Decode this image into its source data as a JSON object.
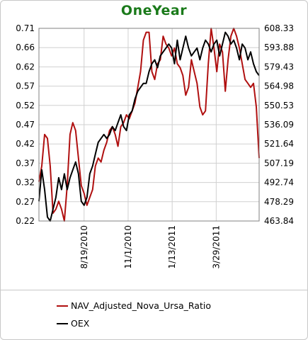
{
  "chart_data": {
    "type": "line",
    "title": "OneYear",
    "title_color": "#1a7a1a",
    "grid": true,
    "legend_position": "bottom",
    "x_tick_labels": [
      "8/19/2010",
      "11/1/2010",
      "1/13/2011",
      "3/29/2011"
    ],
    "y_left": {
      "ticks": [
        "0.71",
        "0.66",
        "0.62",
        "0.57",
        "0.52",
        "0.47",
        "0.42",
        "0.37",
        "0.32",
        "0.27",
        "0.22"
      ],
      "ylim": [
        0.22,
        0.71
      ]
    },
    "y_right": {
      "ticks": [
        "608.33",
        "593.88",
        "579.43",
        "564.98",
        "550.53",
        "536.09",
        "521.64",
        "507.19",
        "492.74",
        "478.29",
        "463.84"
      ],
      "ylim": [
        463.84,
        608.33
      ]
    },
    "series": [
      {
        "name": "NAV_Adjusted_Nova_Ursa_Ratio",
        "axis": "left",
        "color": "#b01010",
        "x": [
          0,
          1,
          2,
          3,
          4,
          5,
          6,
          7,
          8,
          9,
          10,
          11,
          12,
          13,
          14,
          15,
          16,
          17,
          18,
          19,
          20,
          21,
          22,
          23,
          24,
          25,
          26,
          27,
          28,
          29,
          30,
          31,
          32,
          33,
          34,
          35,
          36,
          37,
          38,
          39,
          40,
          41,
          42,
          43,
          44,
          45,
          46,
          47,
          48,
          49,
          50,
          51,
          52,
          53,
          54,
          55,
          56,
          57,
          58,
          59,
          60,
          61,
          62,
          63,
          64,
          65,
          66,
          67,
          68,
          69,
          70,
          71,
          72,
          73,
          74,
          75,
          76,
          77,
          78
        ],
        "values": [
          0.32,
          0.36,
          0.44,
          0.43,
          0.36,
          0.24,
          0.25,
          0.27,
          0.25,
          0.22,
          0.31,
          0.44,
          0.47,
          0.45,
          0.38,
          0.31,
          0.29,
          0.26,
          0.28,
          0.3,
          0.36,
          0.38,
          0.37,
          0.4,
          0.42,
          0.45,
          0.46,
          0.44,
          0.41,
          0.46,
          0.47,
          0.49,
          0.48,
          0.5,
          0.52,
          0.56,
          0.6,
          0.68,
          0.7,
          0.7,
          0.6,
          0.58,
          0.62,
          0.63,
          0.69,
          0.67,
          0.66,
          0.64,
          0.66,
          0.62,
          0.61,
          0.59,
          0.54,
          0.56,
          0.63,
          0.6,
          0.57,
          0.51,
          0.49,
          0.5,
          0.62,
          0.71,
          0.66,
          0.6,
          0.67,
          0.65,
          0.55,
          0.63,
          0.69,
          0.71,
          0.69,
          0.66,
          0.62,
          0.58,
          0.57,
          0.56,
          0.57,
          0.51,
          0.38
        ],
        "xmax": 78
      },
      {
        "name": "OEX",
        "axis": "left",
        "color": "#000000",
        "x": [
          0,
          1,
          2,
          3,
          4,
          5,
          6,
          7,
          8,
          9,
          10,
          11,
          12,
          13,
          14,
          15,
          16,
          17,
          18,
          19,
          20,
          21,
          22,
          23,
          24,
          25,
          26,
          27,
          28,
          29,
          30,
          31,
          32,
          33,
          34,
          35,
          36,
          37,
          38,
          39,
          40,
          41,
          42,
          43,
          44,
          45,
          46,
          47,
          48,
          49,
          50,
          51,
          52,
          53,
          54,
          55,
          56,
          57,
          58,
          59,
          60,
          61,
          62,
          63,
          64,
          65,
          66,
          67,
          68,
          69,
          70,
          71,
          72,
          73,
          74,
          75,
          76,
          77,
          78
        ],
        "values": [
          0.27,
          0.35,
          0.3,
          0.23,
          0.22,
          0.25,
          0.28,
          0.33,
          0.3,
          0.34,
          0.3,
          0.33,
          0.35,
          0.37,
          0.34,
          0.27,
          0.26,
          0.28,
          0.34,
          0.36,
          0.39,
          0.42,
          0.43,
          0.44,
          0.43,
          0.44,
          0.46,
          0.45,
          0.47,
          0.49,
          0.46,
          0.45,
          0.49,
          0.5,
          0.53,
          0.55,
          0.56,
          0.57,
          0.57,
          0.6,
          0.62,
          0.63,
          0.61,
          0.64,
          0.65,
          0.66,
          0.67,
          0.66,
          0.62,
          0.68,
          0.63,
          0.66,
          0.69,
          0.66,
          0.64,
          0.65,
          0.66,
          0.63,
          0.66,
          0.68,
          0.67,
          0.65,
          0.67,
          0.68,
          0.64,
          0.67,
          0.7,
          0.69,
          0.67,
          0.68,
          0.66,
          0.63,
          0.67,
          0.66,
          0.63,
          0.65,
          0.62,
          0.6,
          0.59
        ],
        "xmax": 78
      }
    ]
  }
}
